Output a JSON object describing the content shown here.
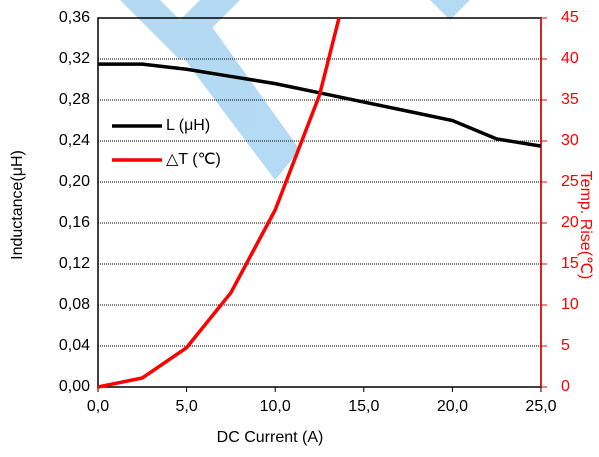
{
  "chart_data": {
    "type": "line",
    "xlabel": "DC Current (A)",
    "ylabel": "Inductance(μH)",
    "y2label": "Temp. Rise(℃)",
    "xlim": [
      0,
      25
    ],
    "ylim": [
      0,
      0.36
    ],
    "y2lim": [
      0,
      45
    ],
    "xticks": [
      {
        "value": 0,
        "label": "0,0"
      },
      {
        "value": 5,
        "label": "5,0"
      },
      {
        "value": 10,
        "label": "10,0"
      },
      {
        "value": 15,
        "label": "15,0"
      },
      {
        "value": 20,
        "label": "20,0"
      },
      {
        "value": 25,
        "label": "25,0"
      }
    ],
    "yticks": [
      {
        "value": 0,
        "label": "0,00"
      },
      {
        "value": 0.04,
        "label": "0,04"
      },
      {
        "value": 0.08,
        "label": "0,08"
      },
      {
        "value": 0.12,
        "label": "0,12"
      },
      {
        "value": 0.16,
        "label": "0,16"
      },
      {
        "value": 0.2,
        "label": "0,20"
      },
      {
        "value": 0.24,
        "label": "0,24"
      },
      {
        "value": 0.28,
        "label": "0,28"
      },
      {
        "value": 0.32,
        "label": "0,32"
      },
      {
        "value": 0.36,
        "label": "0,36"
      }
    ],
    "y2ticks": [
      0,
      5,
      10,
      15,
      20,
      25,
      30,
      35,
      40,
      45
    ],
    "y2color": "#ff0000",
    "grid": true,
    "legend": "left",
    "series": [
      {
        "name": "L (μH)",
        "color": "#000000",
        "x": [
          0,
          2.5,
          5,
          7.5,
          10,
          12.5,
          15,
          17.5,
          20,
          22.5,
          25
        ],
        "values": [
          0.315,
          0.315,
          0.31,
          0.303,
          0.296,
          0.287,
          0.278,
          0.269,
          0.26,
          0.242,
          0.235
        ]
      },
      {
        "name": "△T (℃)",
        "color": "#ff0000",
        "axis": "y2",
        "x": [
          0,
          2.5,
          5,
          7.5,
          10,
          12.5,
          13.6
        ],
        "values": [
          0,
          1.1,
          4.8,
          11.5,
          21.6,
          35.6,
          45
        ]
      }
    ]
  }
}
